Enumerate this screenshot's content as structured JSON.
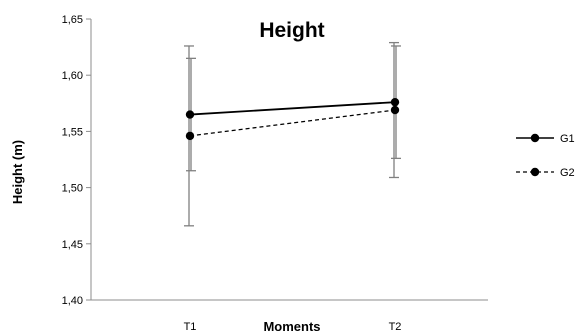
{
  "chart_data": {
    "type": "line",
    "title": "Height",
    "xlabel": "Moments",
    "ylabel": "Height (m)",
    "categories": [
      "T1",
      "T2"
    ],
    "ylim": [
      1.4,
      1.65
    ],
    "yticks": [
      "1,40",
      "1,45",
      "1,50",
      "1,55",
      "1,60",
      "1,65"
    ],
    "ytick_values": [
      1.4,
      1.45,
      1.5,
      1.55,
      1.6,
      1.65
    ],
    "grid": false,
    "legend_position": "right",
    "series": [
      {
        "name": "G1",
        "values": [
          1.565,
          1.576
        ],
        "error_low": [
          1.515,
          1.526
        ],
        "error_high": [
          1.615,
          1.626
        ],
        "line_style": "solid",
        "color": "#000000"
      },
      {
        "name": "G2",
        "values": [
          1.546,
          1.569
        ],
        "error_low": [
          1.466,
          1.509
        ],
        "error_high": [
          1.626,
          1.629
        ],
        "line_style": "dashed",
        "color": "#000000"
      }
    ],
    "errorbar_color": "#808080"
  }
}
